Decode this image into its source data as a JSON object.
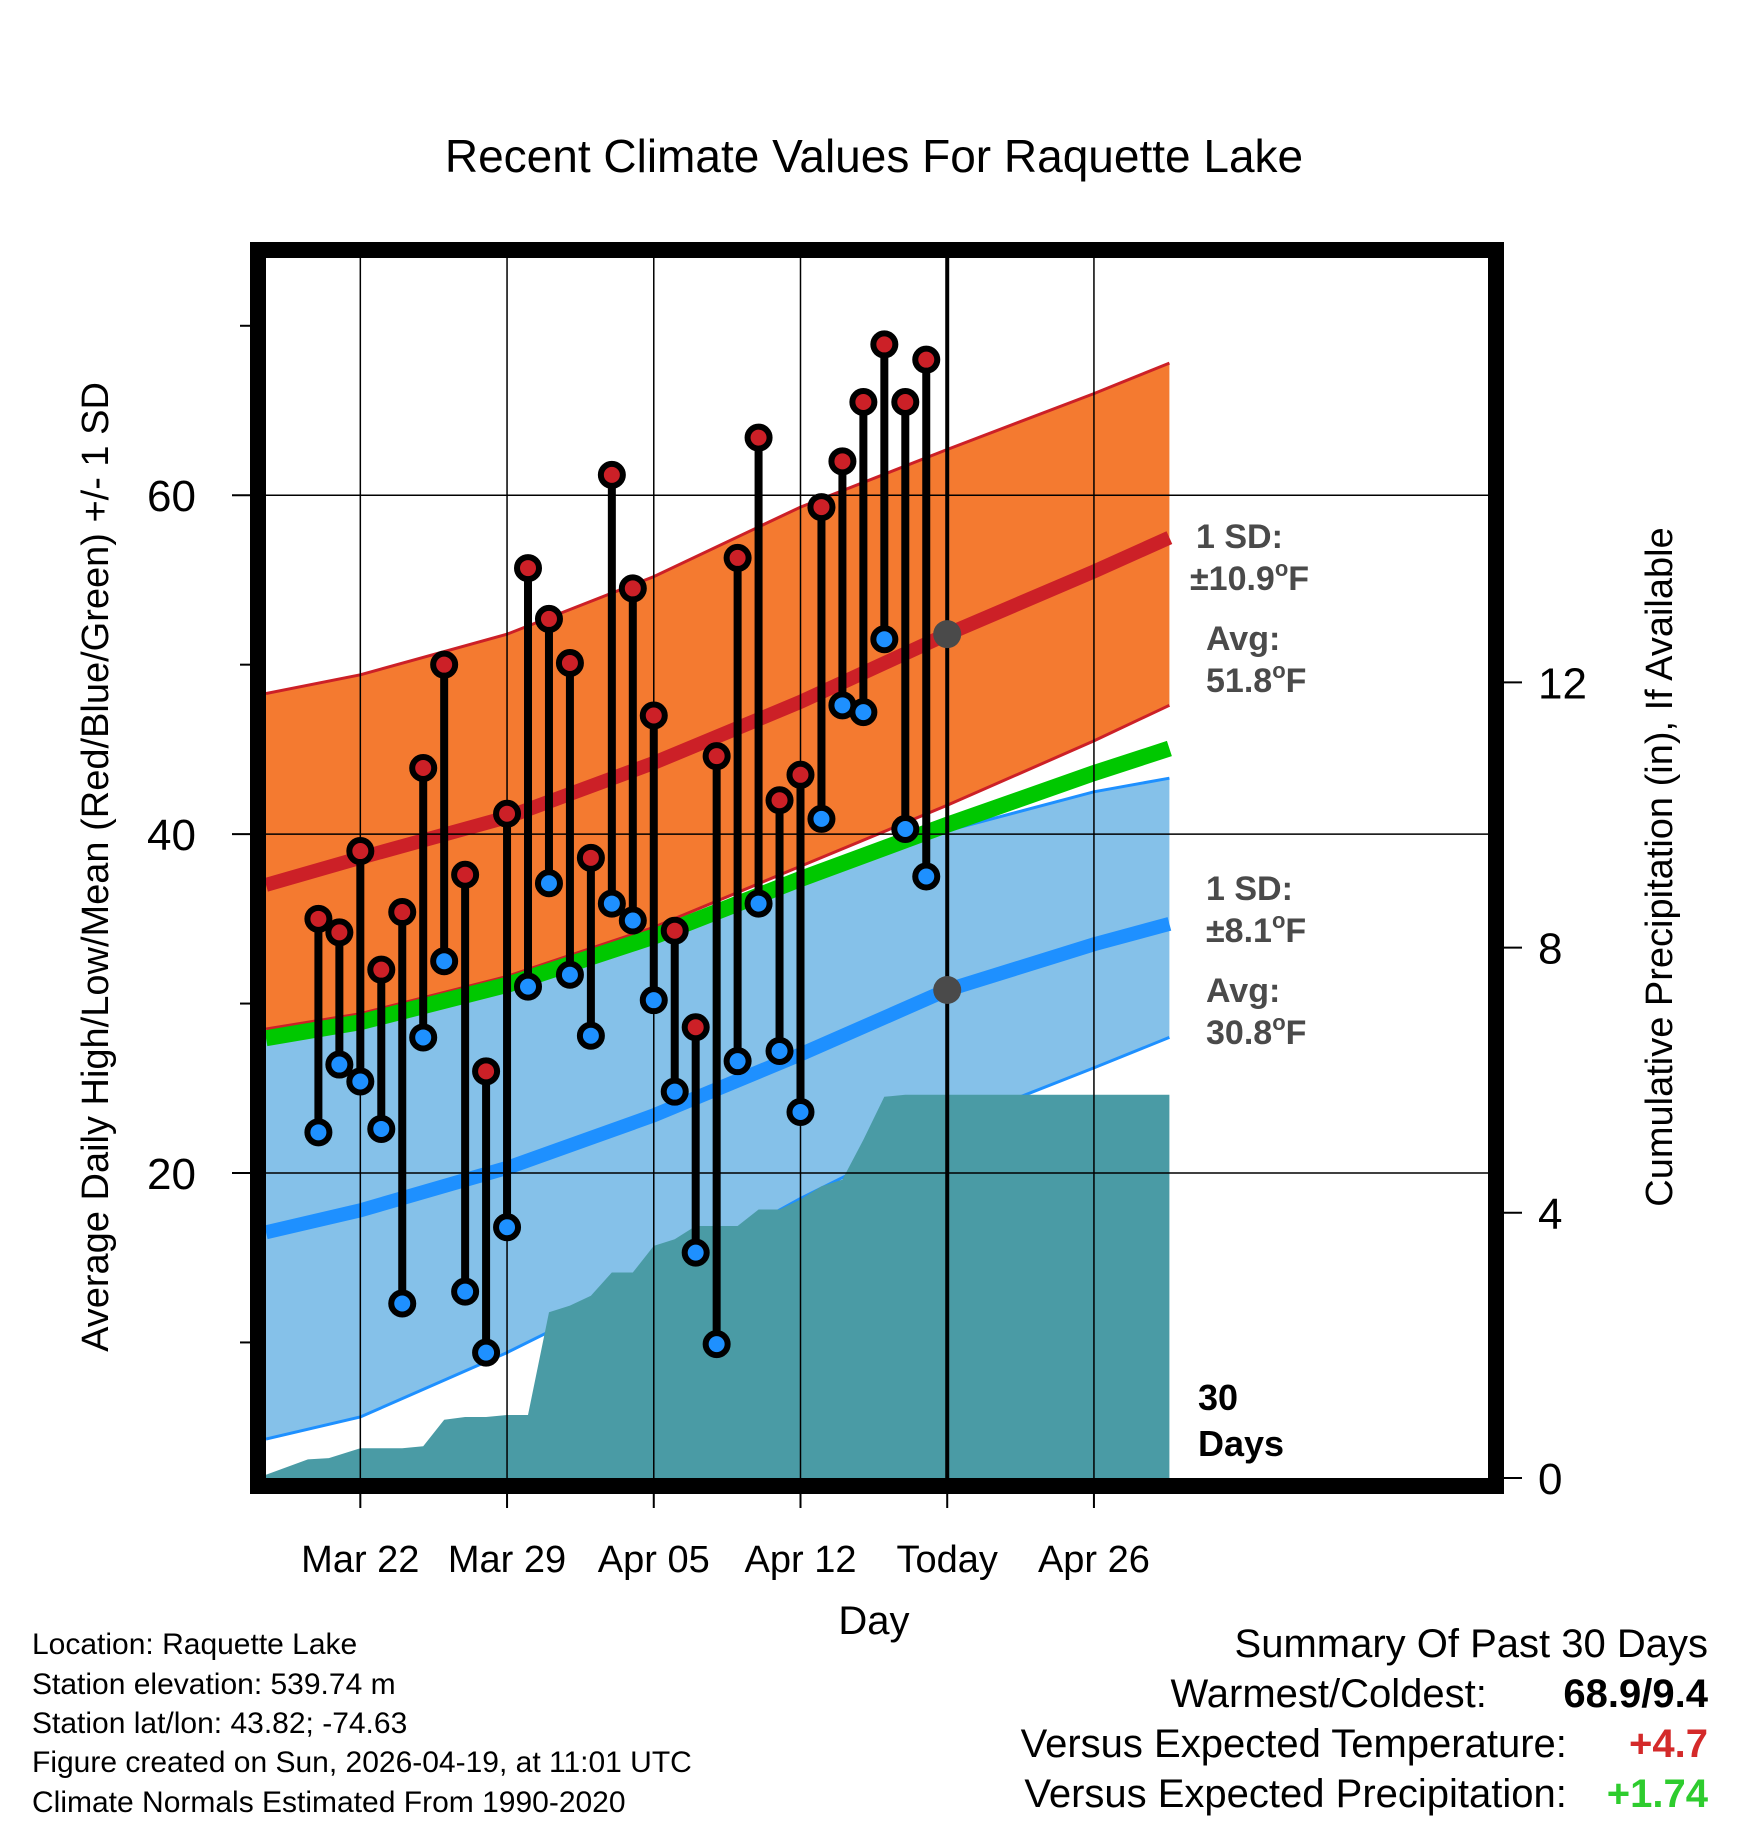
{
  "chart_data": {
    "type": "line",
    "title": "Recent Climate Values For Raquette Lake",
    "xlabel": "Day",
    "ylabel": "Average Daily High/Low/Mean (Red/Blue/Green) +/- 1 SD",
    "y2label": "Cumulative Precipitation (in), If Available",
    "ylim": [
      2,
      74
    ],
    "y2lim": [
      0,
      18.4
    ],
    "xlim": [
      -4.5,
      53.8
    ],
    "x_ticks": [
      {
        "day": 0,
        "label": "Mar 22"
      },
      {
        "day": 7,
        "label": "Mar 29"
      },
      {
        "day": 14,
        "label": "Apr 05"
      },
      {
        "day": 21,
        "label": "Apr 12"
      },
      {
        "day": 28,
        "label": "Today"
      },
      {
        "day": 35,
        "label": "Apr 26"
      }
    ],
    "y_ticks": [
      20,
      40,
      60
    ],
    "y2_ticks": [
      0,
      4,
      8,
      12
    ],
    "today_day": 28,
    "today_marker_label": "30\nDays",
    "normals": {
      "days": [
        -4.5,
        0,
        7,
        14,
        21,
        28,
        35,
        38.6
      ],
      "high_avg": [
        37,
        38.6,
        41,
        44.2,
        47.8,
        51.8,
        55.5,
        57.5
      ],
      "high_sd_upper": [
        48.3,
        49.4,
        51.8,
        55.2,
        59.3,
        62.7,
        66,
        67.8
      ],
      "high_sd_lower": [
        28.5,
        29.4,
        31.6,
        34.5,
        38.1,
        41.7,
        45.5,
        47.6
      ],
      "low_avg": [
        16.5,
        17.8,
        20.3,
        23.4,
        27,
        30.8,
        33.5,
        34.7
      ],
      "low_sd_upper": [
        28.2,
        29.2,
        31.4,
        34.2,
        37.4,
        40.2,
        42.5,
        43.3
      ],
      "low_sd_lower": [
        4.3,
        5.6,
        9.4,
        13.7,
        18.5,
        22.8,
        26.2,
        28
      ]
    },
    "series": [
      {
        "name": "Daily High",
        "color": "#cc2027",
        "days": [
          -2,
          -1,
          0,
          1,
          2,
          3,
          4,
          5,
          6,
          7,
          8,
          9,
          10,
          11,
          12,
          13,
          14,
          15,
          16,
          17,
          18,
          19,
          20,
          21,
          22,
          23,
          24,
          25,
          26,
          27
        ],
        "values": [
          35,
          34.2,
          39,
          32,
          35.4,
          43.9,
          50,
          37.6,
          26,
          41.2,
          55.7,
          52.7,
          50.1,
          38.6,
          61.2,
          54.5,
          47,
          34.3,
          28.6,
          44.6,
          56.3,
          63.4,
          42,
          43.5,
          59.3,
          62,
          65.5,
          68.9,
          65.5,
          68
        ]
      },
      {
        "name": "Daily Low",
        "color": "#1e90ff",
        "days": [
          -2,
          -1,
          0,
          1,
          2,
          3,
          4,
          5,
          6,
          7,
          8,
          9,
          10,
          11,
          12,
          13,
          14,
          15,
          16,
          17,
          18,
          19,
          20,
          21,
          22,
          23,
          24,
          25,
          26,
          27
        ],
        "values": [
          22.4,
          26.4,
          25.4,
          22.6,
          12.3,
          28,
          32.5,
          13,
          9.4,
          16.8,
          31,
          37.1,
          31.7,
          28.1,
          35.9,
          34.9,
          30.2,
          24.8,
          15.3,
          9.9,
          26.6,
          35.9,
          27.2,
          23.6,
          40.9,
          47.6,
          47.2,
          51.5,
          40.3,
          37.5
        ]
      }
    ],
    "precipitation": {
      "color": "#4a9ba5",
      "days": [
        -4.5,
        -2.5,
        -1.5,
        0,
        1,
        2,
        3,
        4,
        5,
        6,
        7,
        8,
        9,
        10,
        11,
        12,
        13,
        14,
        15,
        16,
        17,
        18,
        19,
        20,
        21,
        22,
        23,
        24,
        25,
        26,
        27,
        28,
        35,
        38.6
      ],
      "values": [
        0.05,
        0.28,
        0.3,
        0.45,
        0.45,
        0.45,
        0.48,
        0.88,
        0.92,
        0.92,
        0.95,
        0.95,
        2.5,
        2.6,
        2.75,
        3.1,
        3.1,
        3.5,
        3.6,
        3.8,
        3.8,
        3.8,
        4.05,
        4.05,
        4.2,
        4.4,
        4.5,
        5.1,
        5.75,
        5.78,
        5.78,
        5.78,
        5.78,
        5.78
      ]
    },
    "annotations": {
      "high_sd_label": "1 SD:",
      "high_sd_value": "±10.9",
      "high_avg_label": "Avg:",
      "high_avg_value": "51.8",
      "low_sd_label": "1 SD:",
      "low_sd_value": "±8.1",
      "low_avg_label": "Avg:",
      "low_avg_value": "30.8",
      "deg_sup": "o",
      "unit": "F"
    }
  },
  "info": {
    "location": "Location: Raquette Lake",
    "elevation": "Station elevation: 539.74 m",
    "latlon": "Station lat/lon: 43.82; -74.63",
    "created": "Figure created on Sun, 2026-04-19, at 11:01 UTC",
    "normals": "Climate Normals Estimated From 1990-2020"
  },
  "summary": {
    "title": "Summary Of Past 30 Days",
    "warm_cold_label": "Warmest/Coldest:",
    "warm_cold_value": "68.9/9.4",
    "temp_label": "Versus Expected Temperature:",
    "temp_value": "+4.7",
    "temp_color": "#d42a2a",
    "precip_label": "Versus Expected Precipitation:",
    "precip_value": "+1.74",
    "precip_color": "#2ecc2e"
  },
  "colors": {
    "high_band": "#f47a30",
    "high_line": "#cc2027",
    "mean_line": "#00c800",
    "low_band": "#85c1e9",
    "low_line": "#1e90ff",
    "sd_edge": "#1e90ff",
    "annotation_text": "#4a4a4a"
  }
}
